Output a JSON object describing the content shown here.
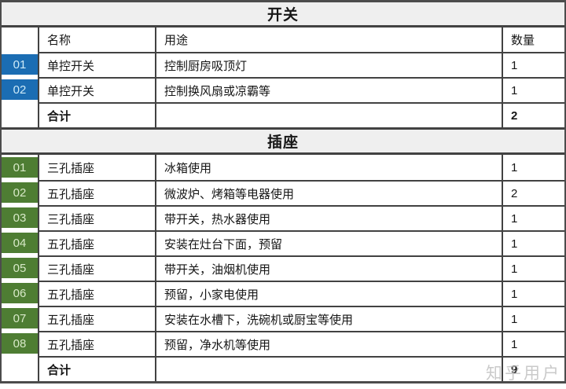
{
  "watermark": "知乎用户",
  "colors": {
    "header_bg": "#efefef",
    "border": "#424242",
    "switch_badge": "#1b6db3",
    "switch_badge_text": "#cdeaf8",
    "socket_badge": "#4e7d33",
    "socket_badge_text": "#d8e9c8",
    "watermark_color": "#bdbdbd"
  },
  "columns": {
    "no": "",
    "name": "名称",
    "purpose": "用途",
    "qty": "数量"
  },
  "sections": [
    {
      "title": "开关",
      "rows": [
        {
          "no": "01",
          "name": "单控开关",
          "purpose": "控制厨房吸顶灯",
          "qty": "1"
        },
        {
          "no": "02",
          "name": "单控开关",
          "purpose": "控制换风扇或凉霸等",
          "qty": "1"
        }
      ],
      "total_label": "合计",
      "total_qty": "2"
    },
    {
      "title": "插座",
      "rows": [
        {
          "no": "01",
          "name": "三孔插座",
          "purpose": "冰箱使用",
          "qty": "1"
        },
        {
          "no": "02",
          "name": "五孔插座",
          "purpose": "微波炉、烤箱等电器使用",
          "qty": "2"
        },
        {
          "no": "03",
          "name": "三孔插座",
          "purpose": "带开关，热水器使用",
          "qty": "1"
        },
        {
          "no": "04",
          "name": "五孔插座",
          "purpose": "安装在灶台下面，预留",
          "qty": "1"
        },
        {
          "no": "05",
          "name": "三孔插座",
          "purpose": "带开关，油烟机使用",
          "qty": "1"
        },
        {
          "no": "06",
          "name": "五孔插座",
          "purpose": "预留，小家电使用",
          "qty": "1"
        },
        {
          "no": "07",
          "name": "五孔插座",
          "purpose": "安装在水槽下，洗碗机或厨宝等使用",
          "qty": "1"
        },
        {
          "no": "08",
          "name": "五孔插座",
          "purpose": "预留，净水机等使用",
          "qty": "1"
        }
      ],
      "total_label": "合计",
      "total_qty": "9"
    }
  ]
}
